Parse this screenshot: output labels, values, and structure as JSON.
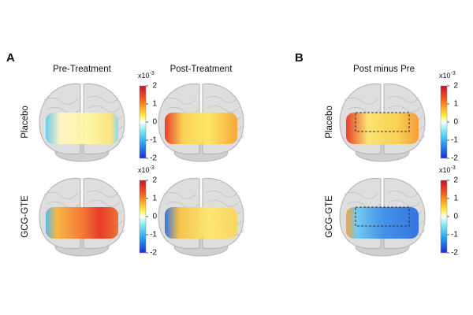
{
  "panels": [
    {
      "label": "A",
      "columns": [
        "Pre-Treatment",
        "Post-Treatment"
      ]
    },
    {
      "label": "B",
      "columns": [
        "Post minus Pre"
      ]
    }
  ],
  "rows": [
    "Placebo",
    "GCG-GTE"
  ],
  "colorbar": {
    "scale": {
      "base": "x10",
      "exponent": "-3"
    },
    "ticks": [
      2,
      1,
      0,
      -1,
      -2
    ]
  }
}
